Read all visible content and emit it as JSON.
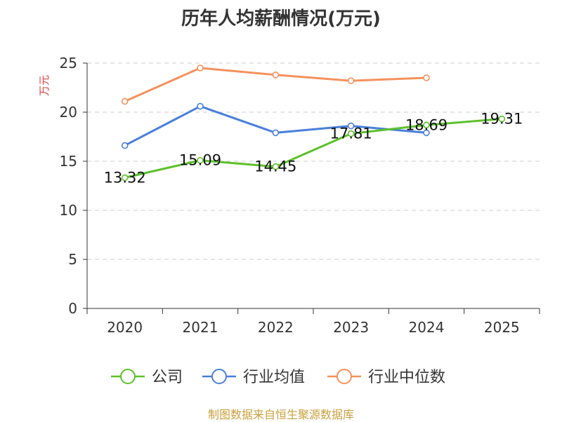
{
  "chart_data": {
    "type": "line",
    "title": "历年人均薪酬情况(万元)",
    "ylabel": "万元",
    "xlabel": "",
    "categories": [
      "2020",
      "2021",
      "2022",
      "2023",
      "2024",
      "2025"
    ],
    "ylim": [
      0,
      25
    ],
    "yticks": [
      0,
      5,
      10,
      15,
      20,
      25
    ],
    "grid": true,
    "legend_position": "bottom",
    "series": [
      {
        "name": "公司",
        "color": "#5cc12a",
        "values": [
          13.32,
          15.09,
          14.45,
          17.81,
          18.69,
          19.31
        ],
        "labels": [
          "13.32",
          "15.09",
          "14.45",
          "17.81",
          "18.69",
          "19.31"
        ]
      },
      {
        "name": "行业均值",
        "color": "#4a7fdb",
        "values": [
          16.6,
          20.6,
          17.9,
          18.6,
          17.9,
          null
        ]
      },
      {
        "name": "行业中位数",
        "color": "#f5915c",
        "values": [
          21.1,
          24.5,
          23.8,
          23.2,
          23.5,
          null
        ]
      }
    ]
  },
  "source": "制图数据来自恒生聚源数据库"
}
